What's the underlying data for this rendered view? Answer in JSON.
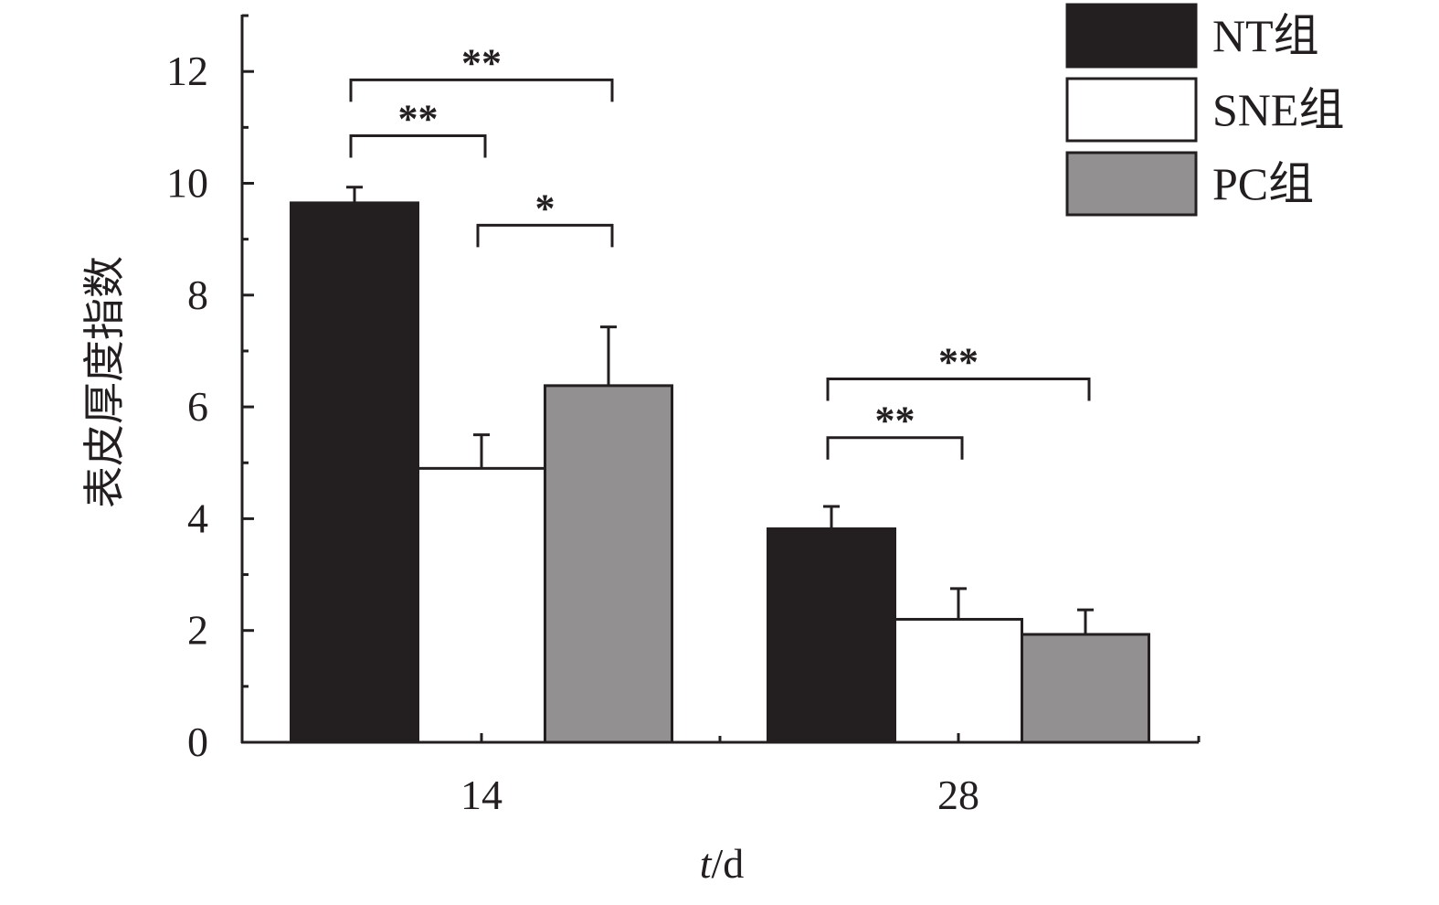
{
  "chart_data": {
    "type": "bar",
    "xlabel": {
      "italic": "t",
      "rest": "/d"
    },
    "ylabel": "表皮厚度指数",
    "ylim": [
      0,
      13
    ],
    "yticks": [
      0,
      2,
      4,
      6,
      8,
      10,
      12
    ],
    "categories": [
      "14",
      "28"
    ],
    "legend_position": "top-right",
    "grid": false,
    "series": [
      {
        "name": "NT组",
        "color": "#231f20",
        "values": [
          9.65,
          3.82
        ],
        "errors": [
          0.28,
          0.4
        ]
      },
      {
        "name": "SNE组",
        "color": "#ffffff",
        "values": [
          4.9,
          2.2
        ],
        "errors": [
          0.6,
          0.55
        ]
      },
      {
        "name": "PC组",
        "color": "#929091",
        "values": [
          6.38,
          1.93
        ],
        "errors": [
          1.05,
          0.44
        ]
      }
    ],
    "significance": [
      {
        "category": 0,
        "from": 0,
        "to": 2,
        "value": 11.85,
        "label": "**"
      },
      {
        "category": 0,
        "from": 0,
        "to": 1,
        "value": 10.85,
        "label": "**"
      },
      {
        "category": 0,
        "from": 1,
        "to": 2,
        "value": 9.25,
        "label": "*"
      },
      {
        "category": 1,
        "from": 0,
        "to": 2,
        "value": 6.5,
        "label": "**"
      },
      {
        "category": 1,
        "from": 0,
        "to": 1,
        "value": 5.45,
        "label": "**"
      }
    ]
  }
}
